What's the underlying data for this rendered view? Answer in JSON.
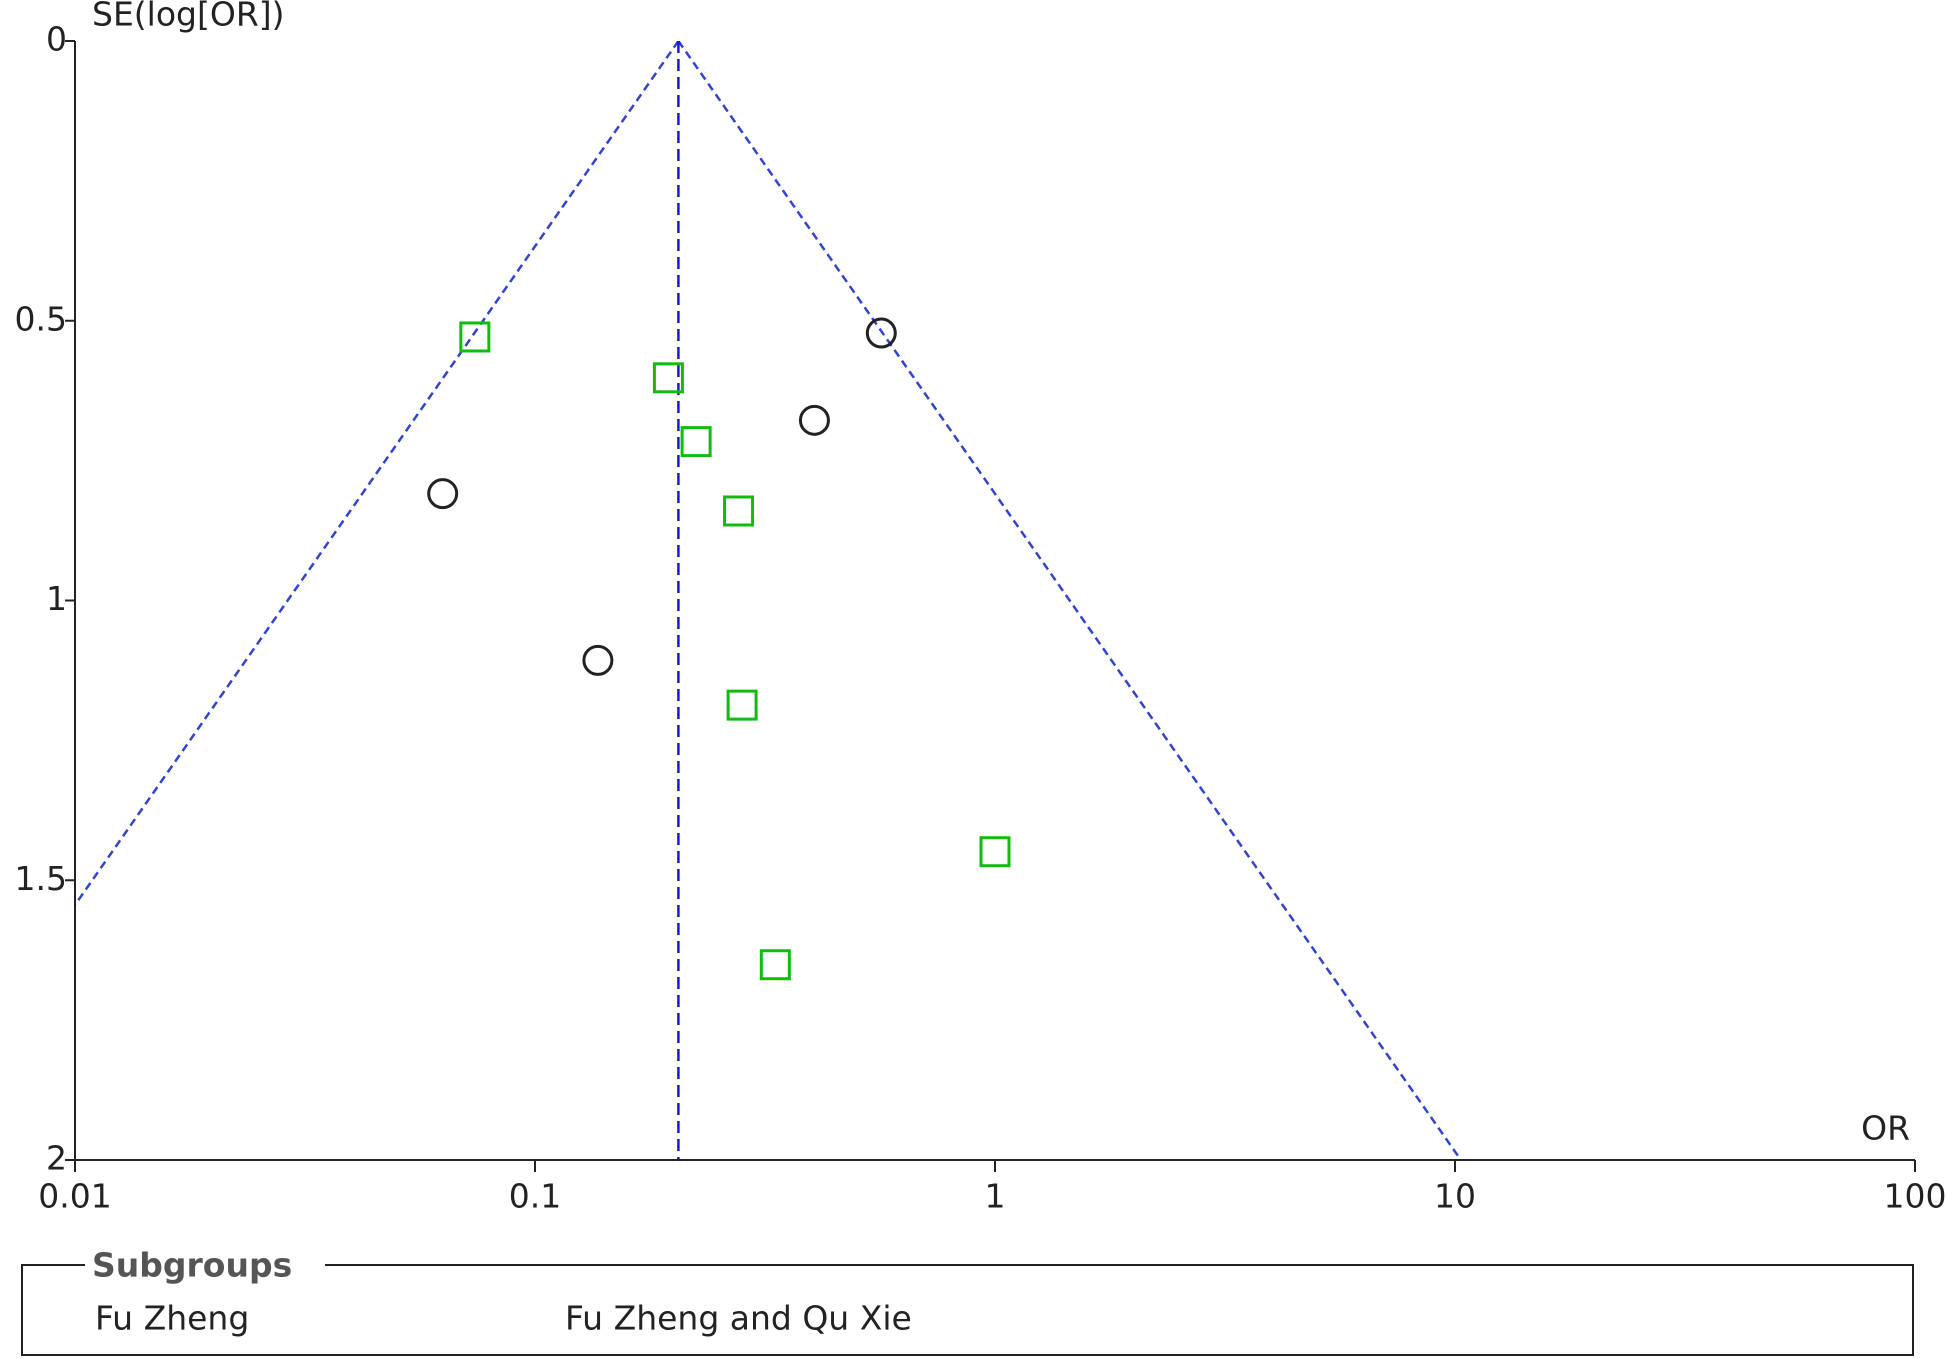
{
  "chart_data": {
    "type": "funnel-scatter",
    "xlabel": "OR",
    "ylabel": "SE(log[OR])",
    "xscale": "log",
    "y_inverted": true,
    "xlim": [
      0.01,
      100
    ],
    "ylim": [
      0,
      2
    ],
    "xticks": [
      0.01,
      0.1,
      1,
      10,
      100
    ],
    "yticks": [
      0,
      0.5,
      1,
      1.5,
      2
    ],
    "pooled_line": {
      "x": [
        0.205,
        0.205
      ],
      "y": [
        0,
        2
      ],
      "color": "#1a1acc"
    },
    "funnel_lines": [
      {
        "x": [
          0.205,
          0.0041
        ],
        "y": [
          0,
          2
        ],
        "color": "#3344cc"
      },
      {
        "x": [
          0.205,
          10.3
        ],
        "y": [
          0,
          2
        ],
        "color": "#3344cc"
      }
    ],
    "legend_title": "Subgroups",
    "series": [
      {
        "name": "Fu Zheng",
        "marker": "circle",
        "color": "#222222",
        "x": [
          0.566,
          0.405,
          0.063,
          0.137
        ],
        "values": [
          0.522,
          0.678,
          0.809,
          1.107
        ]
      },
      {
        "name": "Fu Zheng and Qu Xie",
        "marker": "square",
        "color": "#11bb11",
        "x": [
          0.074,
          0.195,
          0.224,
          0.277,
          0.282,
          1.0,
          0.333
        ],
        "values": [
          0.529,
          0.602,
          0.716,
          0.84,
          1.187,
          1.449,
          1.651
        ]
      }
    ]
  }
}
